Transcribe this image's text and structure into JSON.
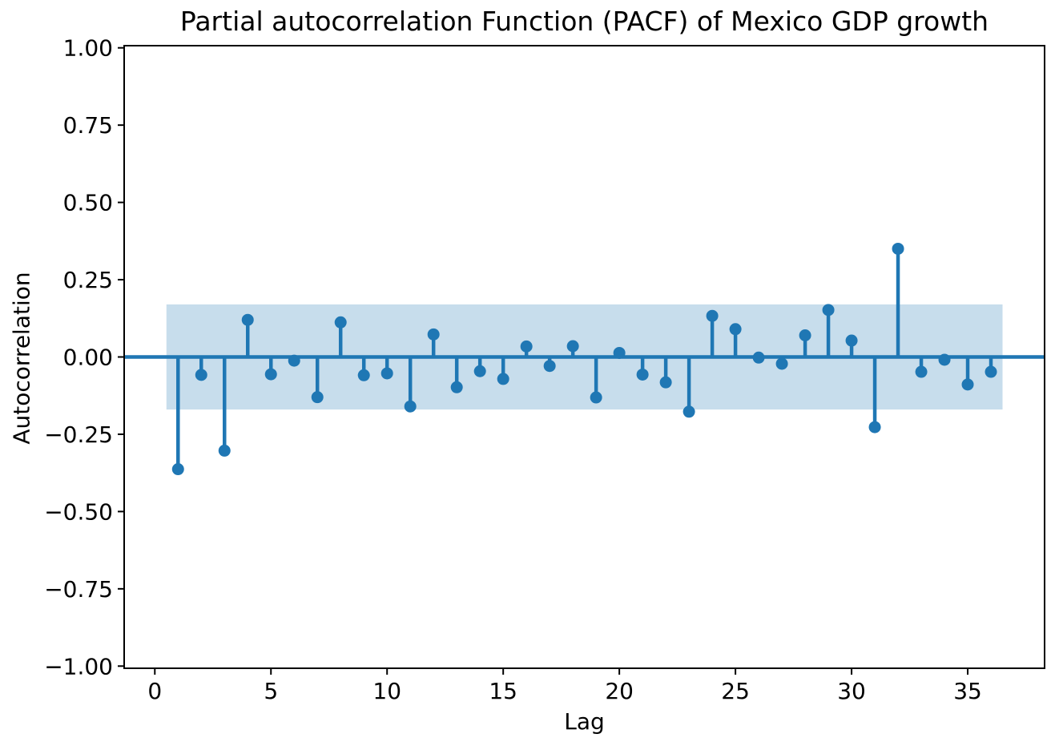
{
  "chart_data": {
    "type": "stem",
    "title": "Partial autocorrelation Function (PACF) of Mexico GDP growth",
    "xlabel": "Lag",
    "ylabel": "Autocorrelation",
    "x": [
      1,
      2,
      3,
      4,
      5,
      6,
      7,
      8,
      9,
      10,
      11,
      12,
      13,
      14,
      15,
      16,
      17,
      18,
      19,
      20,
      21,
      22,
      23,
      24,
      25,
      26,
      27,
      28,
      29,
      30,
      31,
      32,
      33,
      34,
      35,
      36
    ],
    "values": [
      -0.363,
      -0.058,
      -0.303,
      0.12,
      -0.056,
      -0.012,
      -0.13,
      0.112,
      -0.059,
      -0.053,
      -0.16,
      0.073,
      -0.098,
      -0.046,
      -0.071,
      0.034,
      -0.029,
      0.035,
      -0.131,
      0.013,
      -0.057,
      -0.082,
      -0.177,
      0.133,
      0.09,
      -0.002,
      -0.022,
      0.07,
      0.152,
      0.053,
      -0.227,
      0.35,
      -0.048,
      -0.009,
      -0.089,
      -0.048
    ],
    "zero_line": 0.0,
    "confidence_band": {
      "low": -0.17,
      "high": 0.17,
      "x_start": 0.5,
      "x_end": 36.5
    },
    "xlim": [
      -1.32,
      38.31
    ],
    "ylim": [
      -1.007,
      1.007
    ],
    "x_ticks": [
      0,
      5,
      10,
      15,
      20,
      25,
      30,
      35
    ],
    "x_tick_labels": [
      "0",
      "5",
      "10",
      "15",
      "20",
      "25",
      "30",
      "35"
    ],
    "y_ticks": [
      1.0,
      0.75,
      0.5,
      0.25,
      0.0,
      -0.25,
      -0.5,
      -0.75,
      -1.0
    ],
    "y_tick_labels": [
      "1.00",
      "0.75",
      "0.50",
      "0.25",
      "0.00",
      "−0.25",
      "−0.50",
      "−0.75",
      "−1.00"
    ],
    "grid": false,
    "legend_position": "none",
    "colors": {
      "stem": "#1f77b4",
      "marker": "#1f77b4",
      "zero_line": "#1f77b4",
      "confidence_band": "#1f77b4",
      "confidence_band_alpha": 0.25,
      "axis": "#000000",
      "text": "#000000",
      "background": "#ffffff"
    }
  }
}
